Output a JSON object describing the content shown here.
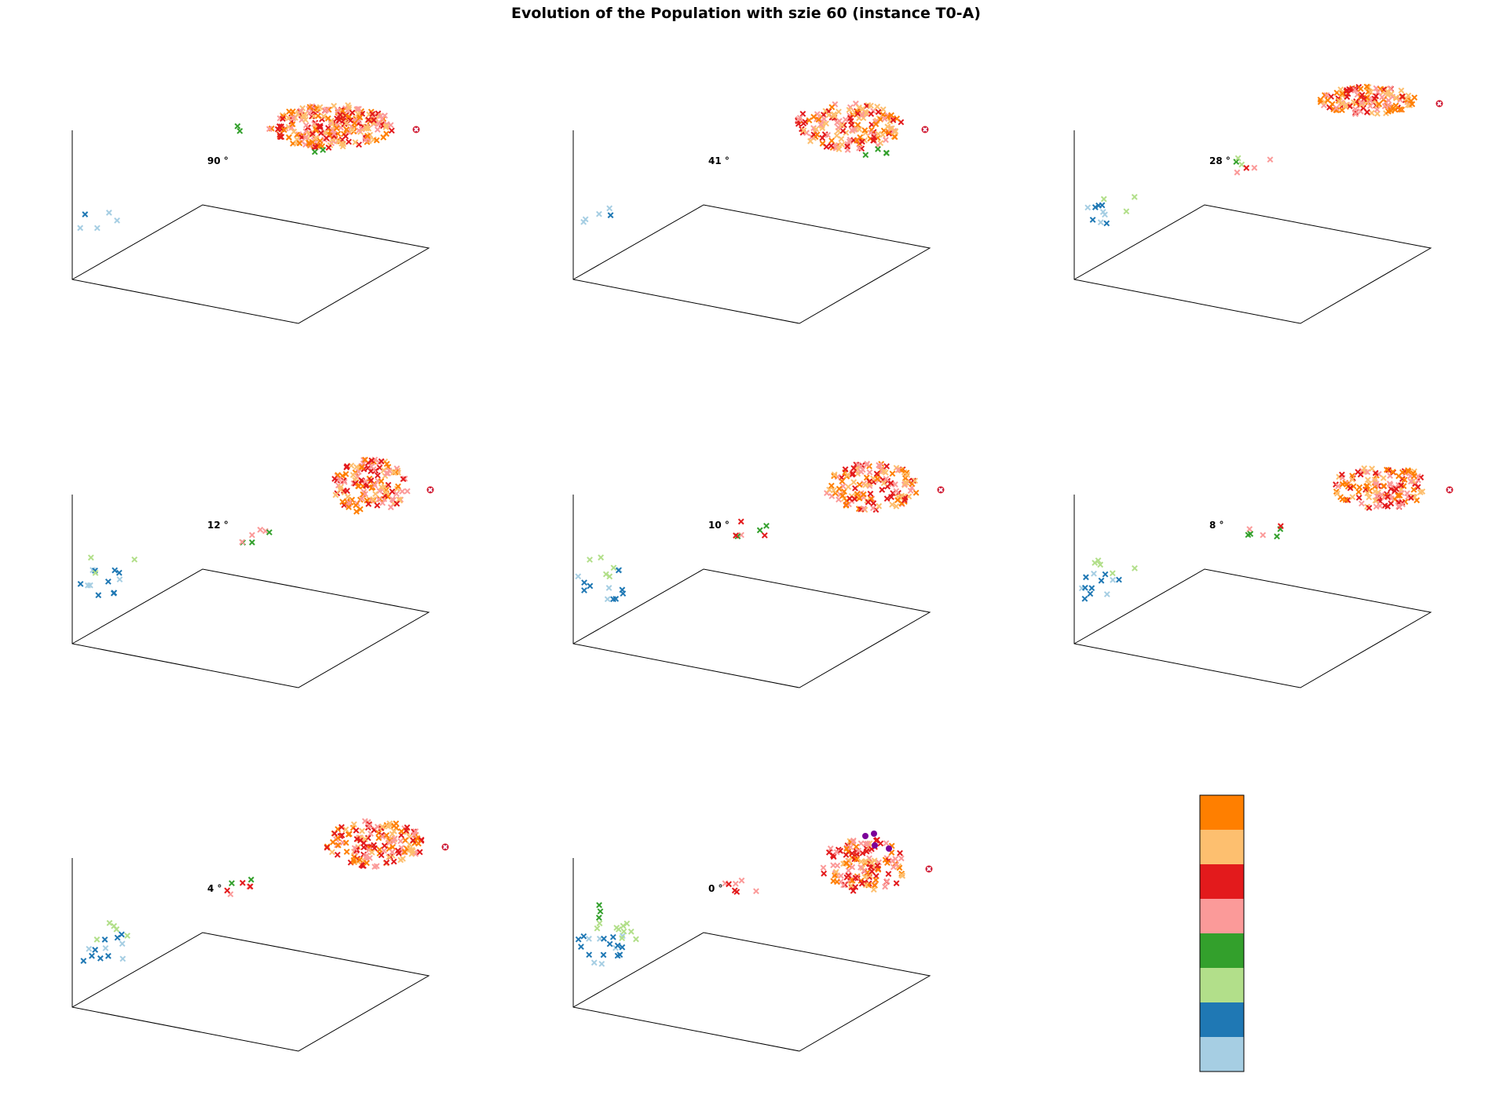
{
  "title": "Evolution of the Population with szie 60 (instance T0-A)",
  "colorbar": {
    "colors_top_to_bottom": [
      "#ff7f00",
      "#fdbf6f",
      "#e31a1c",
      "#fb9a99",
      "#33a02c",
      "#b2df8a",
      "#1f78b4",
      "#a6cee3"
    ]
  },
  "chart_data": [
    {
      "type": "scatter",
      "projection": "3d",
      "marker": "x",
      "angle_label": "90 °",
      "grid": false
    },
    {
      "type": "scatter",
      "projection": "3d",
      "marker": "x",
      "angle_label": "41 °",
      "grid": false
    },
    {
      "type": "scatter",
      "projection": "3d",
      "marker": "x",
      "angle_label": "28 °",
      "grid": false
    },
    {
      "type": "scatter",
      "projection": "3d",
      "marker": "x",
      "angle_label": "12 °",
      "grid": false
    },
    {
      "type": "scatter",
      "projection": "3d",
      "marker": "x",
      "angle_label": "10 °",
      "grid": false
    },
    {
      "type": "scatter",
      "projection": "3d",
      "marker": "x",
      "angle_label": "8 °",
      "grid": false
    },
    {
      "type": "scatter",
      "projection": "3d",
      "marker": "x",
      "angle_label": "4 °",
      "grid": false
    },
    {
      "type": "scatter",
      "projection": "3d",
      "marker": "x",
      "angle_label": "0 °",
      "grid": false
    }
  ]
}
